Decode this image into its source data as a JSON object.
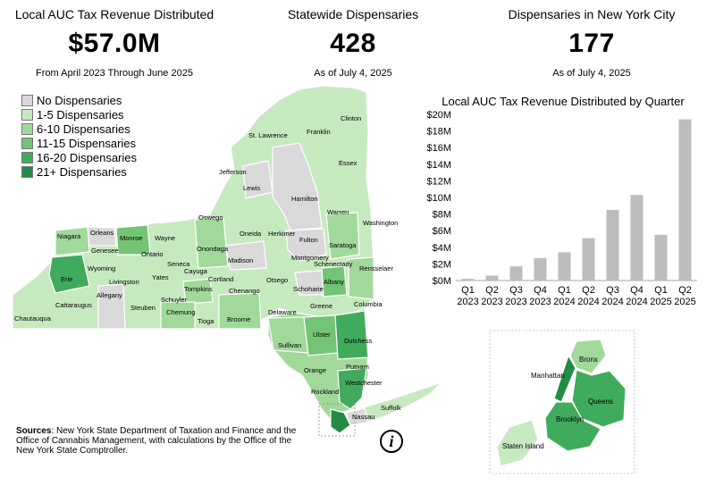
{
  "kpis": {
    "revenue": {
      "label": "Local AUC Tax Revenue Distributed",
      "value": "$57.0M",
      "sub": "From April 2023 Through June 2025"
    },
    "statewide": {
      "label": "Statewide Dispensaries",
      "value": "428",
      "sub": "As of July 4, 2025"
    },
    "nyc": {
      "label": "Dispensaries in New York City",
      "value": "177",
      "sub": "As of July 4, 2025"
    }
  },
  "legend": [
    {
      "label": "No Dispensaries",
      "color": "#d9d9d9"
    },
    {
      "label": "1-5 Dispensaries",
      "color": "#c7e9c0"
    },
    {
      "label": "6-10 Dispensaries",
      "color": "#a1d99b"
    },
    {
      "label": "11-15 Dispensaries",
      "color": "#74c476"
    },
    {
      "label": "16-20 Dispensaries",
      "color": "#41ab5d"
    },
    {
      "label": "21+ Dispensaries",
      "color": "#238b45"
    }
  ],
  "counties": [
    "St. Lawrence",
    "Franklin",
    "Clinton",
    "Essex",
    "Jefferson",
    "Lewis",
    "Hamilton",
    "Oswego",
    "Warren",
    "Washington",
    "Orleans",
    "Niagara",
    "Monroe",
    "Wayne",
    "Genesee",
    "Oneida",
    "Herkimer",
    "Fulton",
    "Saratoga",
    "Ontario",
    "Onondaga",
    "Madison",
    "Montgomery",
    "Schenectady",
    "Erie",
    "Wyoming",
    "Livingston",
    "Seneca",
    "Cayuga",
    "Yates",
    "Cortland",
    "Otsego",
    "Schoharie",
    "Albany",
    "Rensselaer",
    "Allegany",
    "Schuyler",
    "Tompkins",
    "Chenango",
    "Greene",
    "Columbia",
    "Chautauqua",
    "Cattaraugus",
    "Steuben",
    "Chemung",
    "Tioga",
    "Broome",
    "Delaware",
    "Ulster",
    "Dutchess",
    "Sullivan",
    "Putnam",
    "Orange",
    "Rockland",
    "Westchester",
    "Suffolk",
    "Nassau"
  ],
  "nyc_boroughs": [
    "Bronx",
    "Manhattan",
    "Queens",
    "Brooklyn",
    "Staten Island"
  ],
  "sources": {
    "label": "Sources",
    "text": ": New York State Department of Taxation and Finance and the Office of Cannabis Management, with calculations by the Office of the New York State Comptroller."
  },
  "info_icon": "i",
  "chart_data": {
    "type": "bar",
    "title": "Local AUC Tax Revenue Distributed by Quarter",
    "categories": [
      [
        "Q1",
        "2023"
      ],
      [
        "Q2",
        "2023"
      ],
      [
        "Q3",
        "2023"
      ],
      [
        "Q4",
        "2023"
      ],
      [
        "Q1",
        "2024"
      ],
      [
        "Q2",
        "2024"
      ],
      [
        "Q3",
        "2024"
      ],
      [
        "Q4",
        "2024"
      ],
      [
        "Q1",
        "2025"
      ],
      [
        "Q2",
        "2025"
      ]
    ],
    "values": [
      0.2,
      0.6,
      1.7,
      2.7,
      3.4,
      5.1,
      8.5,
      10.3,
      5.5,
      19.4
    ],
    "ylim": [
      0,
      20
    ],
    "yticks": [
      0,
      2,
      4,
      6,
      8,
      10,
      12,
      14,
      16,
      18,
      20
    ],
    "ytick_labels": [
      "$0M",
      "$2M",
      "$4M",
      "$6M",
      "$8M",
      "$10M",
      "$12M",
      "$14M",
      "$16M",
      "$18M",
      "$20M"
    ],
    "bar_color": "#bdbdbd",
    "grid": false
  }
}
